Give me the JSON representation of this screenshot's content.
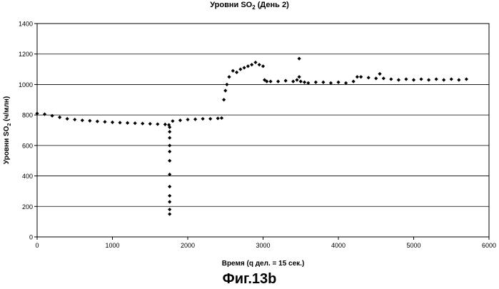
{
  "title_prefix": "Уровни SO",
  "title_sub": "2",
  "title_suffix": " (День 2)",
  "ylabel_prefix": "Уровни SO",
  "ylabel_sub": "2",
  "ylabel_suffix": " (ч/млн)",
  "xlabel": "Время (q дел. = 15 сек.)",
  "caption": "Фиг.13b",
  "chart_data": {
    "type": "scatter",
    "xlim": [
      0,
      6000
    ],
    "ylim": [
      0,
      1400
    ],
    "xticks": [
      0,
      1000,
      2000,
      3000,
      4000,
      5000,
      6000
    ],
    "yticks": [
      0,
      200,
      400,
      600,
      800,
      1000,
      1200,
      1400
    ],
    "grid": "horizontal",
    "legend": "none",
    "marker_color": "#000000",
    "series": [
      {
        "x": [
          0,
          100,
          200,
          300,
          400,
          500,
          600,
          700,
          800,
          900,
          1000,
          1100,
          1200,
          1300,
          1400,
          1500,
          1600,
          1700,
          1750,
          1760,
          1760,
          1760,
          1760,
          1760,
          1760,
          1760,
          1760,
          1760,
          1760,
          1760,
          1760,
          1800,
          1900,
          2000,
          2100,
          2200,
          2300,
          2400,
          2450,
          2480,
          2500,
          2520,
          2550,
          2600,
          2650,
          2700,
          2750,
          2800,
          2850,
          2900,
          2950,
          3000,
          3020,
          3050,
          3100,
          3200,
          3300,
          3400,
          3450,
          3480,
          3480,
          3500,
          3550,
          3600,
          3700,
          3800,
          3900,
          4000,
          4100,
          4200,
          4250,
          4300,
          4400,
          4500,
          4550,
          4600,
          4700,
          4800,
          4900,
          5000,
          5100,
          5200,
          5300,
          5400,
          5500,
          5600,
          5700
        ],
        "y": [
          810,
          805,
          795,
          785,
          775,
          770,
          765,
          762,
          758,
          755,
          752,
          750,
          748,
          746,
          744,
          742,
          740,
          738,
          735,
          720,
          690,
          650,
          600,
          560,
          500,
          410,
          330,
          270,
          230,
          180,
          150,
          760,
          765,
          770,
          772,
          775,
          775,
          778,
          780,
          900,
          960,
          1000,
          1050,
          1090,
          1080,
          1100,
          1110,
          1120,
          1130,
          1145,
          1130,
          1120,
          1030,
          1020,
          1020,
          1020,
          1025,
          1020,
          1030,
          1170,
          1050,
          1020,
          1015,
          1010,
          1015,
          1015,
          1010,
          1015,
          1010,
          1020,
          1050,
          1050,
          1045,
          1040,
          1070,
          1040,
          1035,
          1030,
          1035,
          1030,
          1035,
          1030,
          1035,
          1030,
          1035,
          1030,
          1035
        ]
      }
    ]
  }
}
